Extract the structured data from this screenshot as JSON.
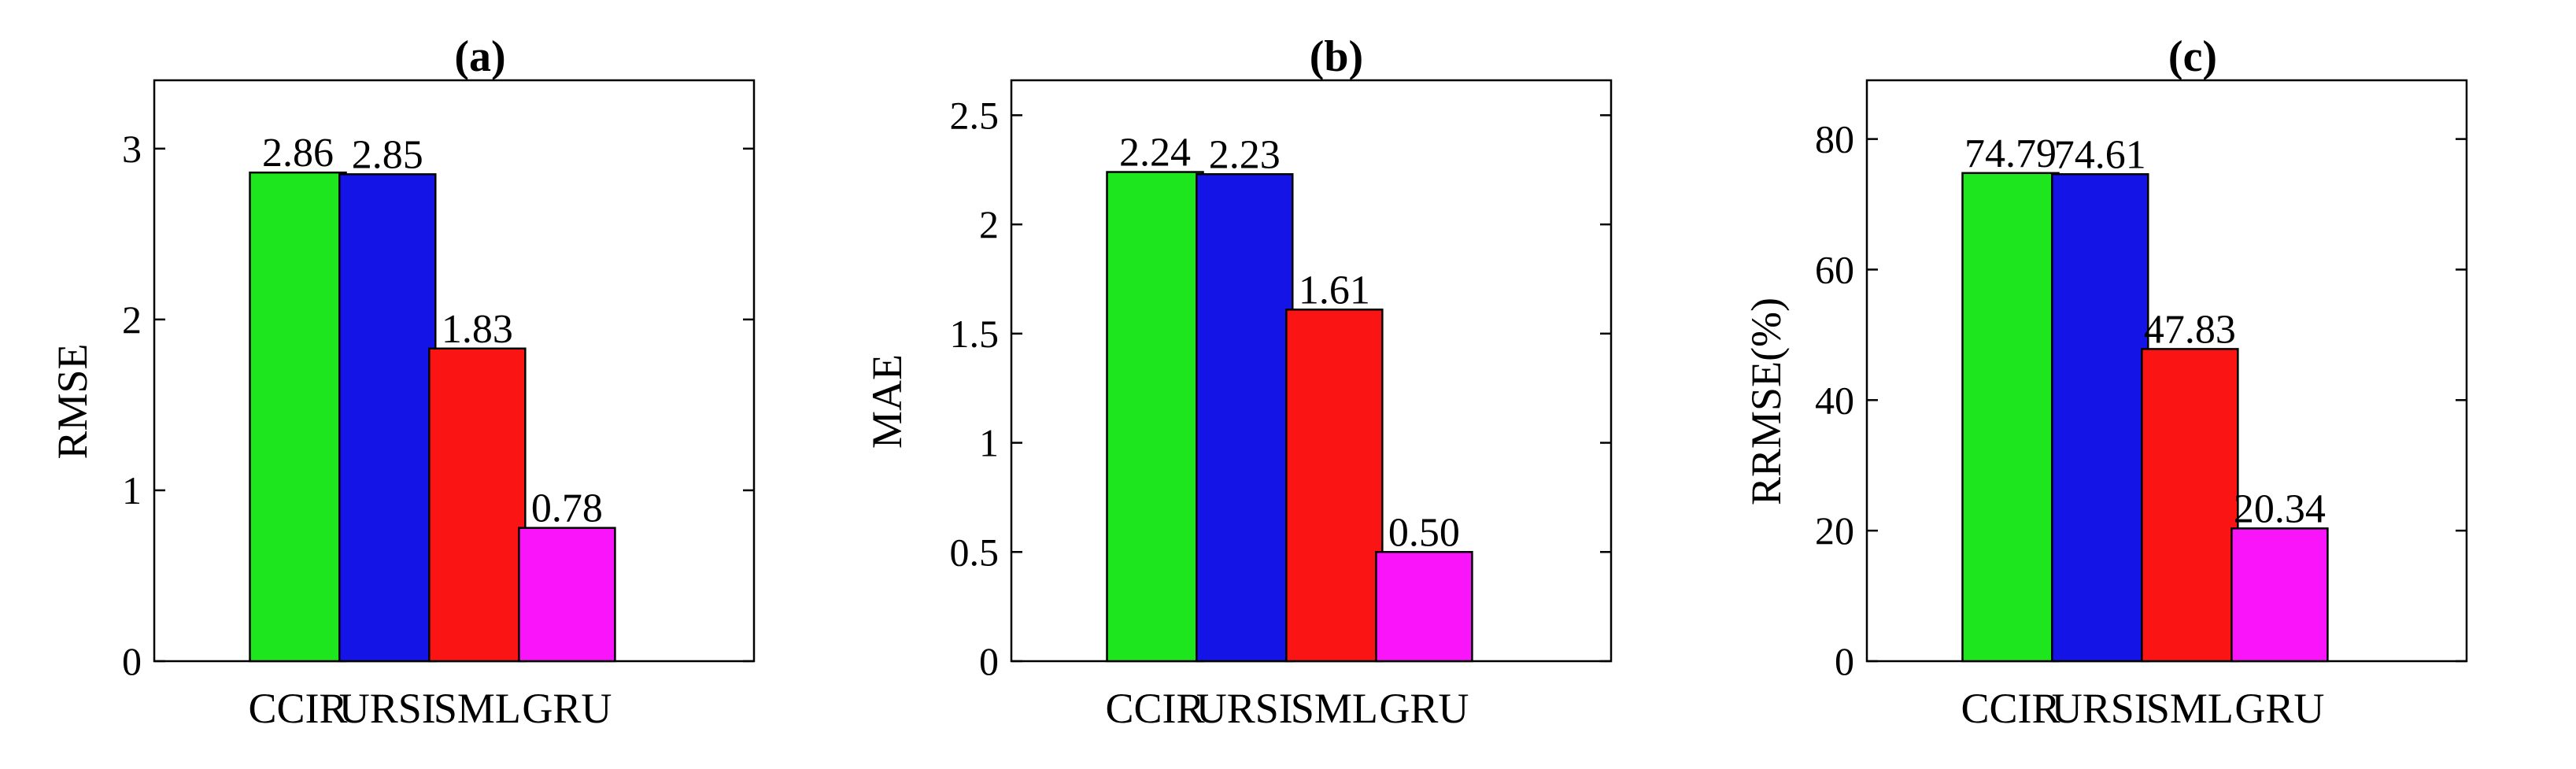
{
  "chart_data": [
    {
      "type": "bar",
      "title": "(a)",
      "ylabel": "RMSE",
      "categories": [
        "CCIR",
        "URSI",
        "SML",
        "GRU"
      ],
      "values": [
        2.86,
        2.85,
        1.83,
        0.78
      ],
      "value_labels": [
        "2.86",
        "2.85",
        "1.83",
        "0.78"
      ],
      "colors": [
        "#1ee61e",
        "#1414e6",
        "#fa1414",
        "#fa14fa"
      ],
      "ylim": [
        0,
        3.4
      ],
      "yticks": [
        0,
        1,
        2,
        3
      ],
      "ytick_labels": [
        "0",
        "1",
        "2",
        "3"
      ]
    },
    {
      "type": "bar",
      "title": "(b)",
      "ylabel": "MAE",
      "categories": [
        "CCIR",
        "URSI",
        "SML",
        "GRU"
      ],
      "values": [
        2.24,
        2.23,
        1.61,
        0.5
      ],
      "value_labels": [
        "2.24",
        "2.23",
        "1.61",
        "0.50"
      ],
      "colors": [
        "#1ee61e",
        "#1414e6",
        "#fa1414",
        "#fa14fa"
      ],
      "ylim": [
        0,
        2.66
      ],
      "yticks": [
        0,
        0.5,
        1,
        1.5,
        2,
        2.5
      ],
      "ytick_labels": [
        "0",
        "0.5",
        "1",
        "1.5",
        "2",
        "2.5"
      ]
    },
    {
      "type": "bar",
      "title": "(c)",
      "ylabel": "RRMSE(%)",
      "categories": [
        "CCIR",
        "URSI",
        "SML",
        "GRU"
      ],
      "values": [
        74.79,
        74.61,
        47.83,
        20.34
      ],
      "value_labels": [
        "74.79",
        "74.61",
        "47.83",
        "20.34"
      ],
      "colors": [
        "#1ee61e",
        "#1414e6",
        "#fa1414",
        "#fa14fa"
      ],
      "ylim": [
        0,
        89
      ],
      "yticks": [
        0,
        20,
        40,
        60,
        80
      ],
      "ytick_labels": [
        "0",
        "20",
        "40",
        "60",
        "80"
      ]
    }
  ]
}
